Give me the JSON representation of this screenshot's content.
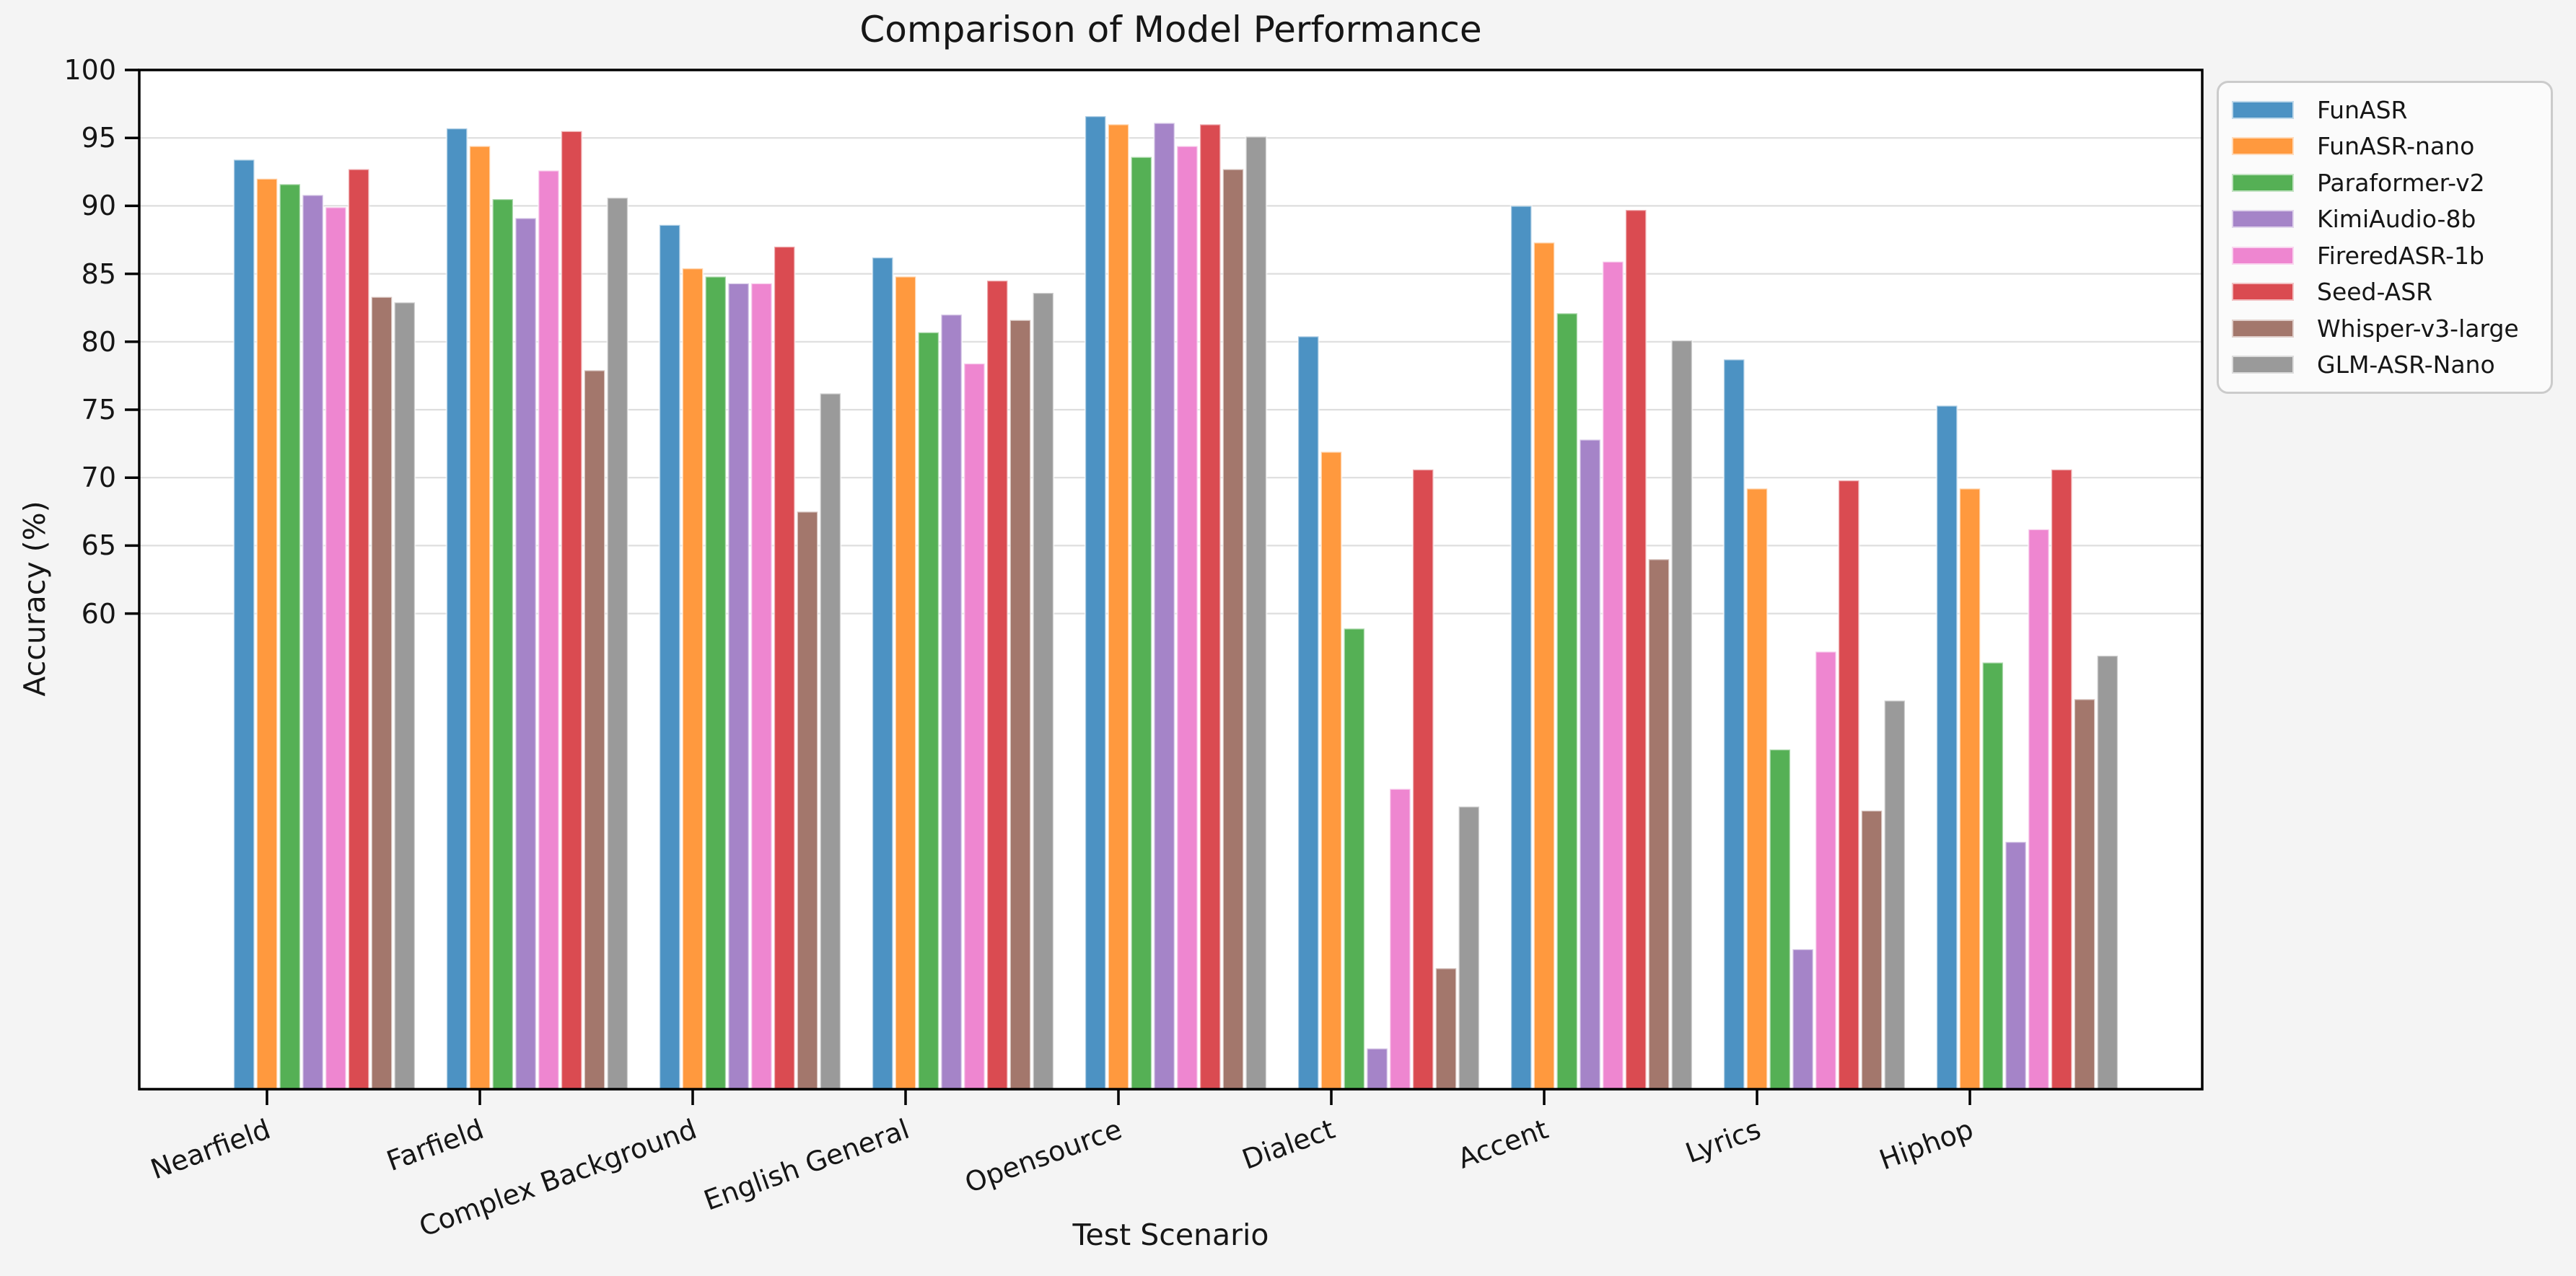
{
  "chart_data": {
    "type": "bar",
    "title": "Comparison of Model Performance",
    "xlabel": "Test Scenario",
    "ylabel": "Accuracy (%)",
    "ylim": [
      25,
      100
    ],
    "yticks": [
      60,
      65,
      70,
      75,
      80,
      85,
      90,
      95,
      100
    ],
    "grid": "horizontal light-gray lines at labeled yticks only",
    "legend_position": "upper right, outside plot area",
    "xtick_rotation_deg": 20,
    "categories": [
      "Nearfield",
      "Farfield",
      "Complex Background",
      "English General",
      "Opensource",
      "Dialect",
      "Accent",
      "Lyrics",
      "Hiphop"
    ],
    "series": [
      {
        "name": "FunASR",
        "color": "#4c92c3",
        "values": [
          93.4,
          95.7,
          88.6,
          86.2,
          96.6,
          80.4,
          90.0,
          78.7,
          75.3
        ]
      },
      {
        "name": "FunASR-nano",
        "color": "#ff993e",
        "values": [
          92.0,
          94.4,
          85.4,
          84.8,
          96.0,
          71.9,
          87.3,
          69.2,
          69.2
        ]
      },
      {
        "name": "Paraformer-v2",
        "color": "#55b055",
        "values": [
          91.6,
          90.5,
          84.8,
          80.7,
          93.6,
          58.9,
          82.1,
          50.0,
          56.4
        ]
      },
      {
        "name": "KimiAudio-8b",
        "color": "#a584c8",
        "values": [
          90.8,
          89.1,
          84.3,
          82.0,
          96.1,
          28.0,
          72.8,
          35.3,
          43.2
        ]
      },
      {
        "name": "FireredASR-1b",
        "color": "#ee86d0",
        "values": [
          89.9,
          92.6,
          84.3,
          78.4,
          94.4,
          47.1,
          85.9,
          57.2,
          66.2
        ]
      },
      {
        "name": "Seed-ASR",
        "color": "#da4b51",
        "values": [
          92.7,
          95.5,
          87.0,
          84.5,
          96.0,
          70.6,
          89.7,
          69.8,
          70.6
        ]
      },
      {
        "name": "Whisper-v3-large",
        "color": "#a3776c",
        "values": [
          83.3,
          77.9,
          67.5,
          81.6,
          92.7,
          33.9,
          64.0,
          45.5,
          53.7
        ]
      },
      {
        "name": "GLM-ASR-Nano",
        "color": "#9a9a9a",
        "values": [
          82.9,
          90.6,
          76.2,
          83.6,
          95.1,
          45.8,
          80.1,
          53.6,
          56.9
        ]
      }
    ],
    "colors": {
      "figure_background": "#f4f4f4",
      "plot_background": "#ffffff",
      "gridline": "#dedede",
      "spine": "#000000",
      "text": "#161616"
    }
  }
}
